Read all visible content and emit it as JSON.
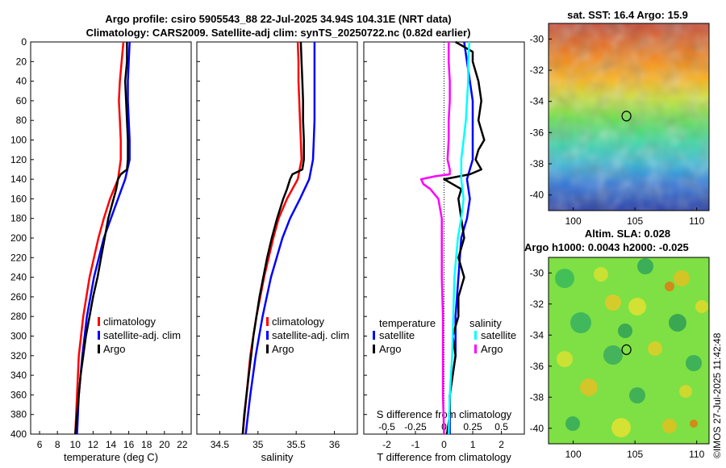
{
  "title_line1": "Argo profile: csiro 5905543_88 22-Jul-2025 34.94S 104.31E (NRT data)",
  "title_line2": "Climatology: CARS2009. Satellite-adj clim: synTS_20250722.nc (0.82d earlier)",
  "credit": "©IMOS 27-Jul-2025 11:42:48",
  "colors": {
    "climatology": "#ff0000",
    "satellite": "#0000ff",
    "argo": "#000000",
    "sat_sal": "#00ffff",
    "argo_sal": "#ff00ff"
  },
  "chart_data": [
    {
      "type": "line",
      "name": "temperature-profile",
      "xlabel": "temperature (deg C)",
      "ylabel": "depth",
      "xlim": [
        5,
        23
      ],
      "ylim": [
        0,
        400
      ],
      "xticks": [
        6,
        8,
        10,
        12,
        14,
        16,
        18,
        20,
        22
      ],
      "yticks": [
        0,
        20,
        40,
        60,
        80,
        100,
        120,
        140,
        160,
        180,
        200,
        220,
        240,
        260,
        280,
        300,
        320,
        340,
        360,
        380,
        400
      ],
      "legend": [
        "climatology",
        "satellite-adj. clim",
        "Argo"
      ],
      "series": [
        {
          "name": "climatology",
          "depth": [
            0,
            20,
            40,
            60,
            80,
            100,
            120,
            140,
            160,
            180,
            200,
            240,
            280,
            320,
            360,
            400
          ],
          "values": [
            15.4,
            15.2,
            15.0,
            14.9,
            15.0,
            15.1,
            15.1,
            14.8,
            13.9,
            13.2,
            12.6,
            11.6,
            10.9,
            10.4,
            10.2,
            10.0
          ]
        },
        {
          "name": "satellite-adj. clim",
          "depth": [
            0,
            20,
            40,
            60,
            80,
            100,
            120,
            140,
            160,
            180,
            200,
            240,
            280,
            320,
            360,
            400
          ],
          "values": [
            16.1,
            16.0,
            15.9,
            15.9,
            16.0,
            16.1,
            16.1,
            15.6,
            14.8,
            14.0,
            13.2,
            12.1,
            11.3,
            10.8,
            10.4,
            10.2
          ]
        },
        {
          "name": "Argo",
          "depth": [
            0,
            20,
            40,
            60,
            80,
            100,
            120,
            130,
            135,
            140,
            150,
            160,
            180,
            200,
            220,
            240,
            260,
            280,
            300,
            320,
            340,
            360,
            380,
            400
          ],
          "values": [
            15.8,
            15.8,
            15.6,
            15.7,
            15.8,
            15.9,
            15.9,
            15.8,
            15.1,
            14.8,
            14.6,
            14.3,
            13.7,
            13.3,
            12.9,
            12.5,
            12.0,
            11.6,
            11.2,
            10.9,
            10.6,
            10.4,
            10.2,
            10.0
          ]
        }
      ]
    },
    {
      "type": "line",
      "name": "salinity-profile",
      "xlabel": "salinity",
      "ylabel": "depth",
      "xlim": [
        34.2,
        36.3
      ],
      "ylim": [
        0,
        400
      ],
      "xticks": [
        34.5,
        35,
        35.5,
        36
      ],
      "legend": [
        "climatology",
        "satellite-adj. clim",
        "Argo"
      ],
      "series": [
        {
          "name": "climatology",
          "depth": [
            0,
            20,
            40,
            60,
            80,
            100,
            120,
            140,
            160,
            180,
            200,
            240,
            280,
            320,
            360,
            400
          ],
          "values": [
            35.52,
            35.53,
            35.53,
            35.54,
            35.55,
            35.56,
            35.57,
            35.52,
            35.38,
            35.27,
            35.2,
            35.08,
            34.98,
            34.9,
            34.85,
            34.8
          ]
        },
        {
          "name": "satellite-adj. clim",
          "depth": [
            0,
            20,
            40,
            60,
            80,
            100,
            120,
            140,
            160,
            180,
            200,
            240,
            280,
            320,
            360,
            400
          ],
          "values": [
            35.74,
            35.74,
            35.74,
            35.74,
            35.74,
            35.73,
            35.72,
            35.67,
            35.55,
            35.42,
            35.32,
            35.17,
            35.06,
            34.97,
            34.9,
            34.84
          ]
        },
        {
          "name": "Argo",
          "depth": [
            0,
            20,
            40,
            60,
            80,
            100,
            120,
            130,
            135,
            140,
            150,
            160,
            180,
            200,
            220,
            240,
            260,
            280,
            300,
            320,
            340,
            360,
            380,
            400
          ],
          "values": [
            35.56,
            35.57,
            35.58,
            35.59,
            35.59,
            35.6,
            35.6,
            35.58,
            35.45,
            35.42,
            35.38,
            35.33,
            35.25,
            35.18,
            35.12,
            35.07,
            35.02,
            34.98,
            34.94,
            34.91,
            34.88,
            34.85,
            34.82,
            34.8
          ]
        }
      ]
    },
    {
      "type": "line",
      "name": "difference-profile",
      "xlabel": "T difference from climatology",
      "xlabel_top": "S difference from climatology",
      "ylabel": "depth",
      "xlim": [
        -2.8,
        2.8
      ],
      "ylim": [
        0,
        400
      ],
      "xticks": [
        -2,
        -1,
        0,
        1,
        2
      ],
      "xticks_s": [
        -0.5,
        -0.25,
        0,
        0.25,
        0.5
      ],
      "legend_t_title": "temperature",
      "legend_s_title": "salinity",
      "legend": [
        "satellite",
        "Argo",
        "satellite",
        "Argo"
      ],
      "series": [
        {
          "name": "T satellite",
          "depth": [
            0,
            20,
            40,
            60,
            80,
            100,
            120,
            140,
            160,
            180,
            200,
            240,
            280,
            320,
            360,
            400
          ],
          "values": [
            0.7,
            0.8,
            0.9,
            1.0,
            1.0,
            1.0,
            1.0,
            0.8,
            0.9,
            0.8,
            0.6,
            0.5,
            0.4,
            0.4,
            0.2,
            0.2
          ]
        },
        {
          "name": "T Argo",
          "depth": [
            0,
            10,
            20,
            40,
            60,
            80,
            100,
            110,
            120,
            130,
            135,
            140,
            150,
            160,
            180,
            200,
            220,
            240,
            260,
            280,
            300,
            320,
            340,
            360,
            380,
            400
          ],
          "values": [
            0.4,
            1.0,
            1.0,
            1.2,
            1.3,
            1.2,
            1.4,
            1.2,
            1.1,
            1.3,
            0.9,
            0.0,
            0.6,
            0.5,
            0.6,
            0.7,
            0.5,
            0.7,
            0.5,
            0.5,
            0.3,
            0.4,
            0.3,
            0.2,
            0.2,
            0.1
          ]
        },
        {
          "name": "S satellite",
          "depth": [
            0,
            20,
            40,
            60,
            80,
            100,
            120,
            140,
            160,
            180,
            200,
            240,
            280,
            320,
            360,
            400
          ],
          "values": [
            0.22,
            0.21,
            0.21,
            0.2,
            0.19,
            0.17,
            0.15,
            0.15,
            0.17,
            0.15,
            0.12,
            0.09,
            0.08,
            0.07,
            0.05,
            0.04
          ]
        },
        {
          "name": "S Argo",
          "depth": [
            0,
            20,
            40,
            60,
            80,
            100,
            120,
            130,
            135,
            137,
            140,
            145,
            150,
            160,
            180,
            200,
            240,
            280,
            320,
            360,
            400
          ],
          "values": [
            0.04,
            0.04,
            0.05,
            0.05,
            0.04,
            0.04,
            0.03,
            0.05,
            0.05,
            -0.08,
            -0.2,
            -0.18,
            -0.12,
            -0.05,
            -0.02,
            -0.02,
            -0.02,
            -0.01,
            -0.01,
            -0.01,
            0.0
          ]
        }
      ]
    },
    {
      "type": "heatmap",
      "name": "sst-map",
      "title": "sat. SST: 16.4 Argo: 15.9",
      "xlim": [
        98,
        111
      ],
      "ylim": [
        -41,
        -29
      ],
      "xticks": [
        100,
        105,
        110
      ],
      "yticks": [
        -30,
        -32,
        -34,
        -36,
        -38,
        -40
      ],
      "marker": {
        "lon": 104.31,
        "lat": -34.94
      }
    },
    {
      "type": "heatmap",
      "name": "sla-map",
      "title": "Altim. SLA: 0.028",
      "subtitle": "Argo h1000: 0.0043 h2000: -0.025",
      "xlim": [
        98,
        111
      ],
      "ylim": [
        -41,
        -29
      ],
      "xticks": [
        100,
        105,
        110
      ],
      "yticks": [
        -30,
        -32,
        -34,
        -36,
        -38,
        -40
      ],
      "marker": {
        "lon": 104.31,
        "lat": -34.94
      }
    }
  ]
}
